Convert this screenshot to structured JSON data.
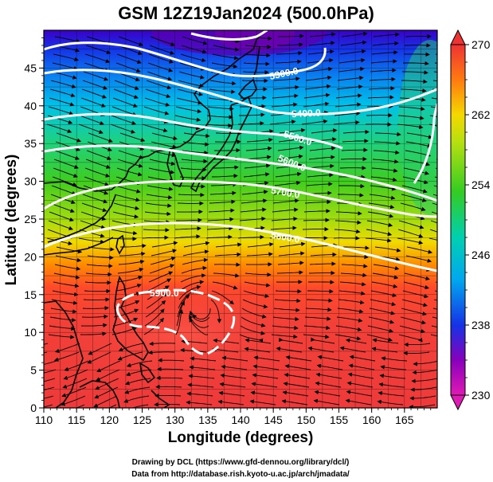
{
  "title": "GSM 12Z19Jan2024 (500.0hPa)",
  "x_axis": {
    "label": "Longitude (degrees)",
    "range": [
      110,
      170
    ],
    "ticks": [
      "110",
      "115",
      "120",
      "125",
      "130",
      "135",
      "140",
      "145",
      "150",
      "155",
      "160",
      "165"
    ]
  },
  "y_axis": {
    "label": "Latitude  (degrees)",
    "range": [
      0,
      50
    ],
    "ticks": [
      "0",
      "5",
      "10",
      "15",
      "20",
      "25",
      "30",
      "35",
      "40",
      "45"
    ]
  },
  "colorbar": {
    "range": [
      230,
      270
    ],
    "ticks": [
      "230",
      "238",
      "246",
      "254",
      "262",
      "270"
    ]
  },
  "contour_labels": [
    "5300.0",
    "5400.0",
    "5500.0",
    "5600.0",
    "5700.0",
    "5800.0",
    "5900.0"
  ],
  "credits": {
    "line1": "Drawing by DCL (https://www.gfd-dennou.org/library/dcl/)",
    "line2": "Data from http://database.rish.kyoto-u.ac.jp/arch/jmadata/"
  },
  "colors": {
    "background": "#ffffff",
    "contour": "#ffffff",
    "streamline": "#000000",
    "coastline": "#000000",
    "grid": "#000000"
  },
  "color_scale": [
    "#dd22aa",
    "#8800bb",
    "#0022cc",
    "#0099ee",
    "#00ccdd",
    "#22cc88",
    "#33cc22",
    "#99dd11",
    "#eedd00",
    "#ff9900",
    "#ff4422",
    "#ee3333"
  ]
}
